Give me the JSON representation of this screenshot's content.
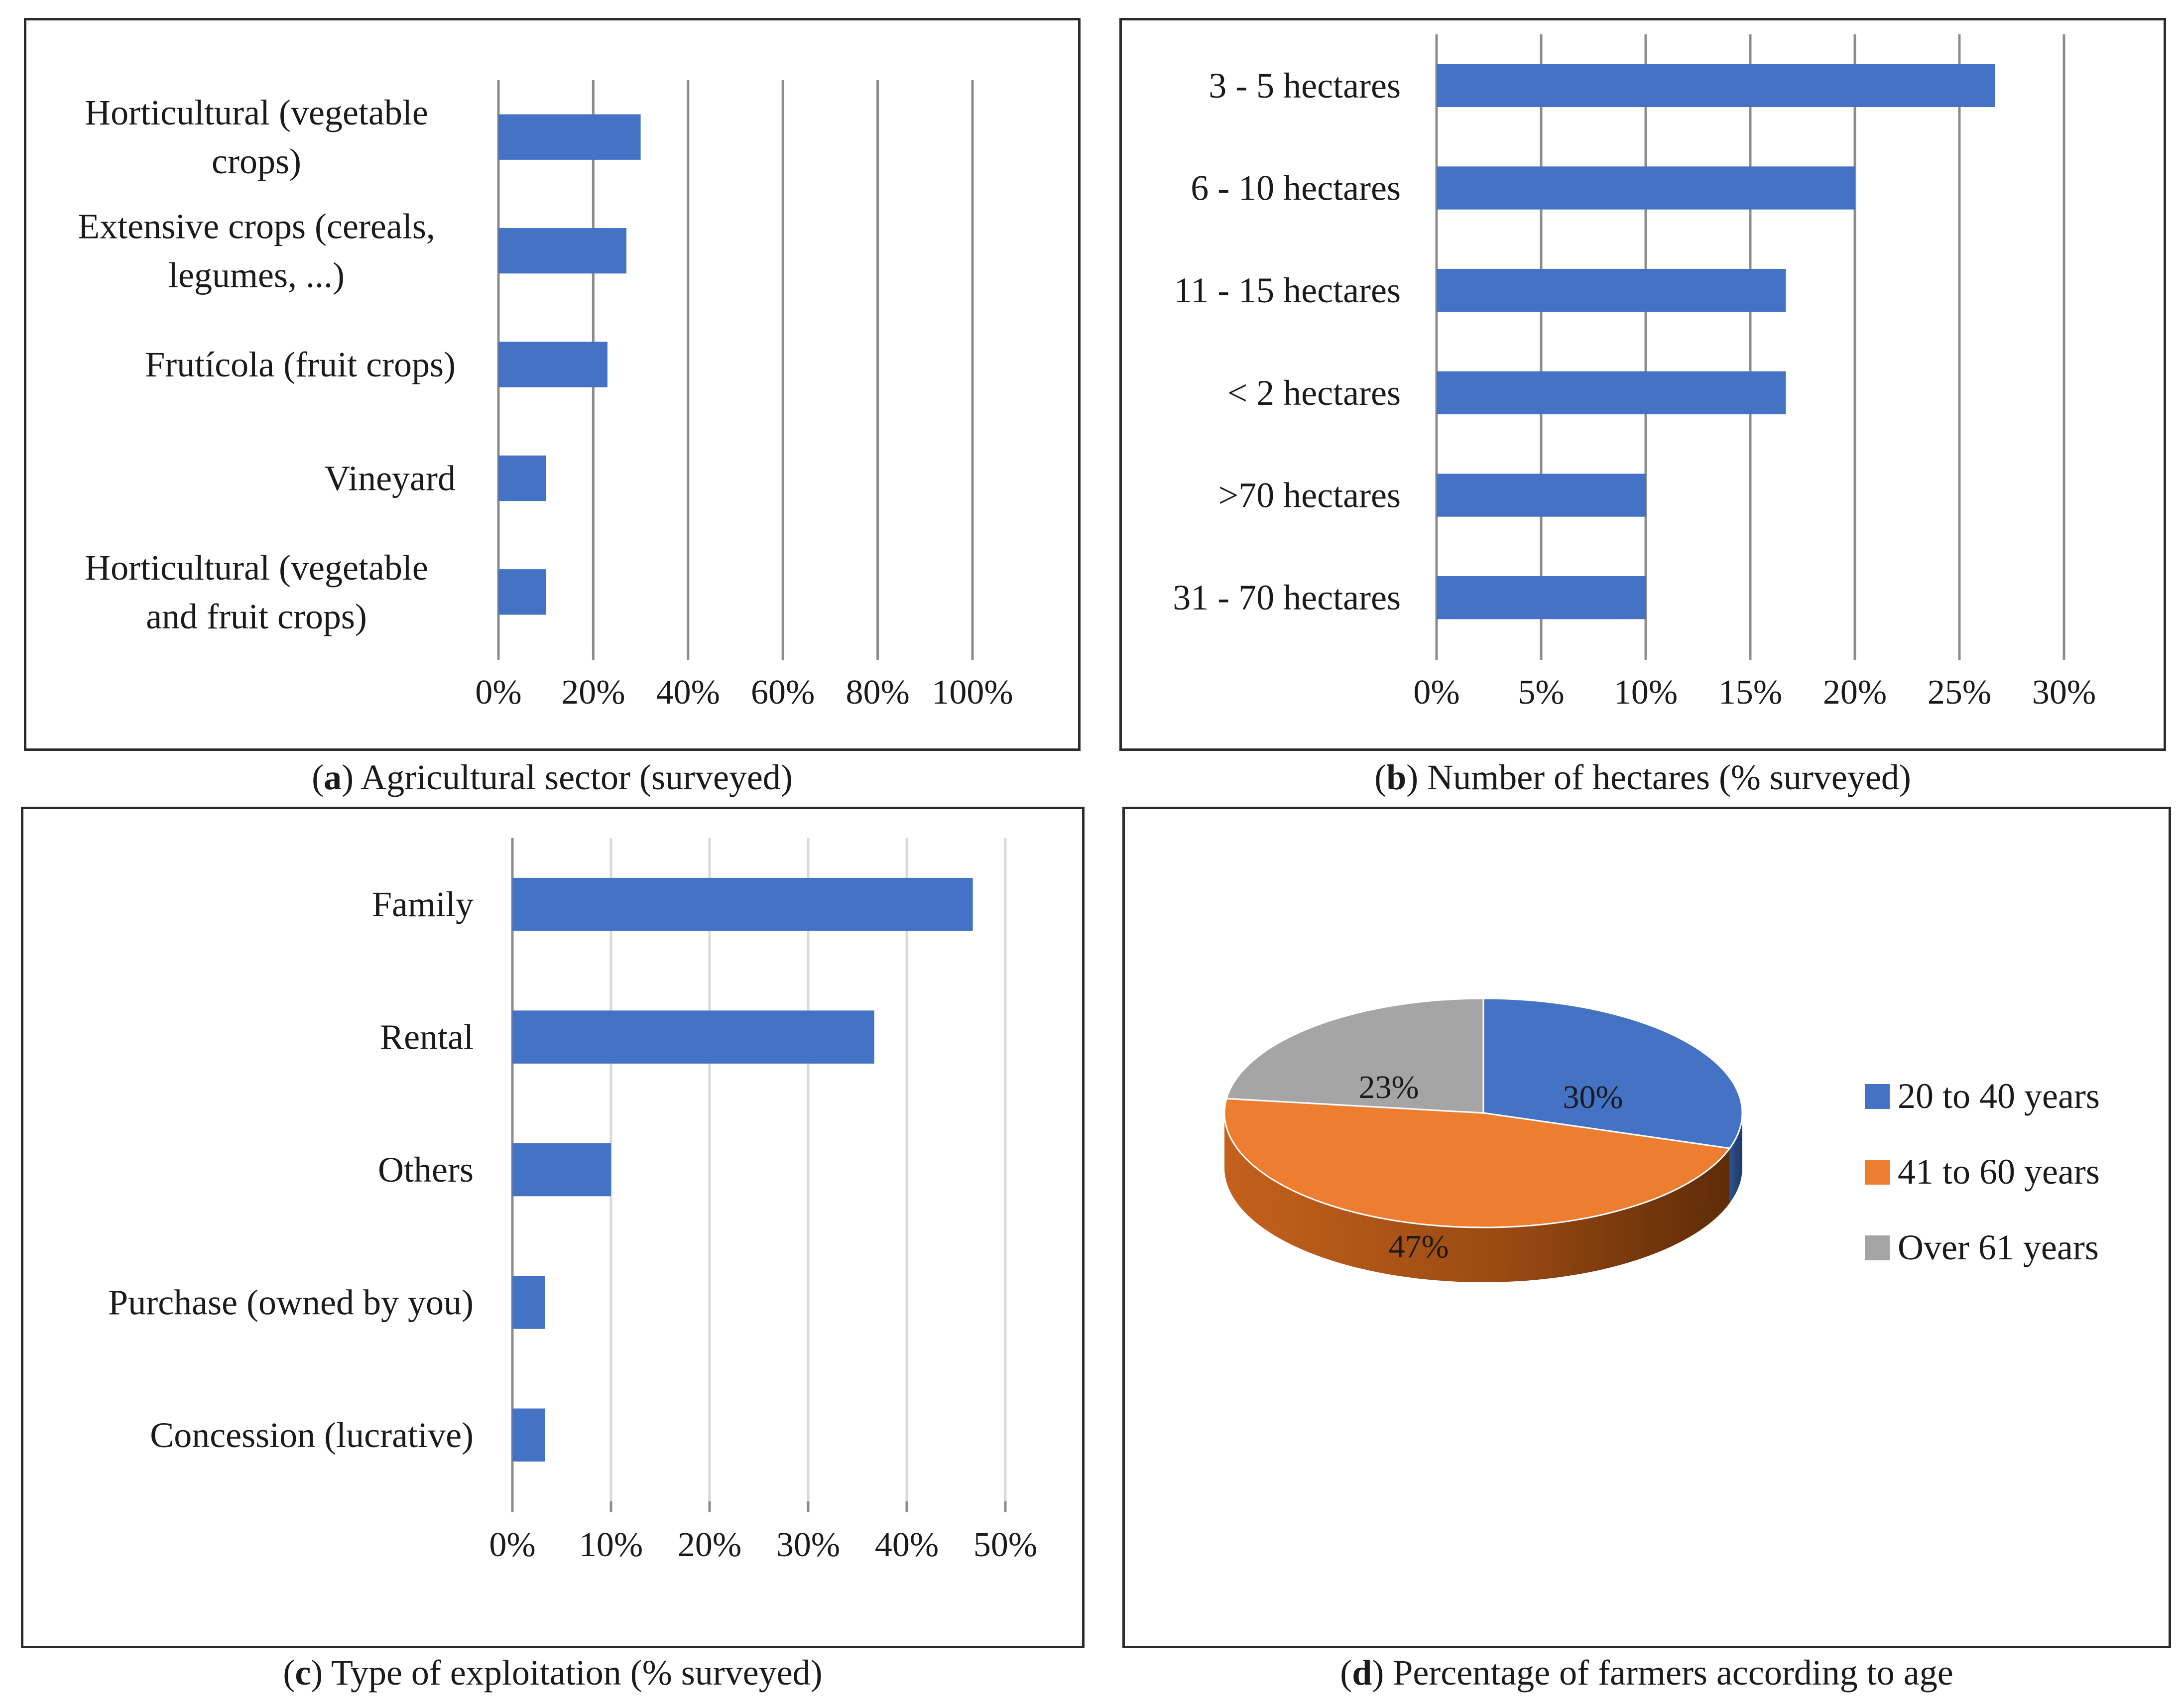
{
  "chart_data": [
    {
      "id": "a",
      "type": "bar",
      "orientation": "horizontal",
      "caption_letter": "a",
      "caption_text": "Agricultural sector (surveyed)",
      "categories": [
        [
          "Horticultural (vegetable",
          "crops)"
        ],
        [
          "Extensive crops (cereals,",
          "legumes, ...)"
        ],
        [
          "Frutícola (fruit crops)"
        ],
        [
          "Vineyard"
        ],
        [
          "Horticultural (vegetable",
          "and fruit crops)"
        ]
      ],
      "values": [
        30,
        27,
        23,
        10,
        10
      ],
      "xlim": [
        0,
        100
      ],
      "xticks": [
        0,
        20,
        40,
        60,
        80,
        100
      ],
      "xtick_labels": [
        "0%",
        "20%",
        "40%",
        "60%",
        "80%",
        "100%"
      ],
      "bar_color": "#4472c4",
      "grid_color": "#8c8c8c"
    },
    {
      "id": "b",
      "type": "bar",
      "orientation": "horizontal",
      "caption_letter": "b",
      "caption_text": "Number of hectares (% surveyed)",
      "categories": [
        [
          "3 - 5 hectares"
        ],
        [
          "6 - 10 hectares"
        ],
        [
          "11 - 15 hectares"
        ],
        [
          "< 2 hectares"
        ],
        [
          ">70 hectares"
        ],
        [
          "31 - 70 hectares"
        ]
      ],
      "values": [
        26.7,
        20,
        16.7,
        16.7,
        10,
        10
      ],
      "xlim": [
        0,
        30
      ],
      "xticks": [
        0,
        5,
        10,
        15,
        20,
        25,
        30
      ],
      "xtick_labels": [
        "0%",
        "5%",
        "10%",
        "15%",
        "20%",
        "25%",
        "30%"
      ],
      "bar_color": "#4472c4",
      "grid_color": "#8c8c8c"
    },
    {
      "id": "c",
      "type": "bar",
      "orientation": "horizontal",
      "caption_letter": "c",
      "caption_text": "Type of exploitation (% surveyed)",
      "categories": [
        [
          "Family"
        ],
        [
          "Rental"
        ],
        [
          "Others"
        ],
        [
          "Purchase (owned by you)"
        ],
        [
          "Concession (lucrative)"
        ]
      ],
      "values": [
        46.7,
        36.7,
        10,
        3.3,
        3.3
      ],
      "xlim": [
        0,
        50
      ],
      "xticks": [
        0,
        10,
        20,
        30,
        40,
        50
      ],
      "xtick_labels": [
        "0%",
        "10%",
        "20%",
        "30%",
        "40%",
        "50%"
      ],
      "bar_color": "#4472c4",
      "grid_color": "#d9d9d9"
    },
    {
      "id": "d",
      "type": "pie",
      "caption_letter": "d",
      "caption_text": "Percentage of farmers according to age",
      "labels": [
        "20 to 40 years",
        "41 to 60 years",
        "Over 61 years"
      ],
      "values": [
        30,
        47,
        23
      ],
      "value_labels": [
        "30%",
        "47%",
        "23%"
      ],
      "colors": [
        "#4472c4",
        "#ed7d31",
        "#a5a5a5"
      ],
      "legend_position": "right"
    }
  ]
}
